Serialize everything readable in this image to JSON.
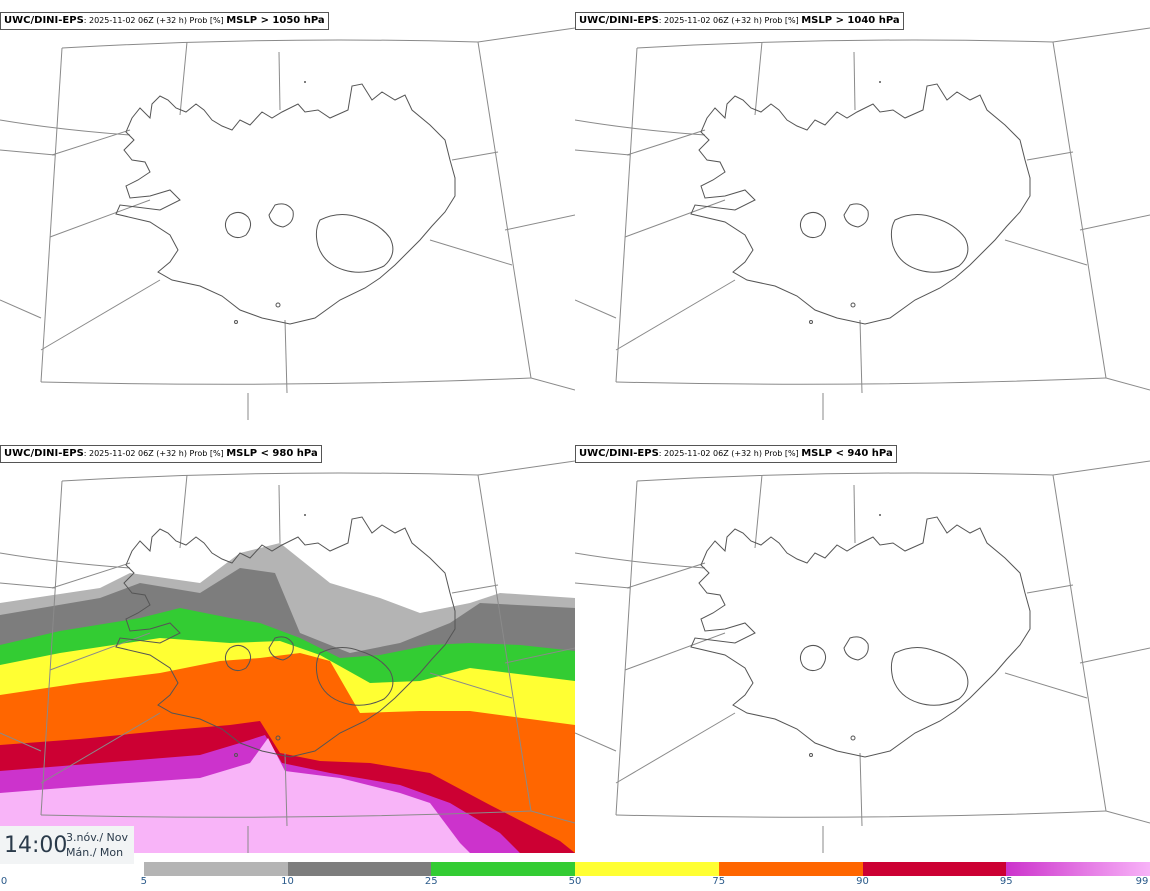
{
  "panels": [
    {
      "model": "UWC/DINI-EPS",
      "run": ": 2025-11-02 06Z (+32 h) Prob [%]",
      "threshold": "MSLP > 1050 hPa"
    },
    {
      "model": "UWC/DINI-EPS",
      "run": ": 2025-11-02 06Z (+32 h) Prob [%]",
      "threshold": "MSLP > 1040 hPa"
    },
    {
      "model": "UWC/DINI-EPS",
      "run": ": 2025-11-02 06Z (+32 h) Prob [%]",
      "threshold": "MSLP < 980 hPa"
    },
    {
      "model": "UWC/DINI-EPS",
      "run": ": 2025-11-02 06Z (+32 h) Prob [%]",
      "threshold": "MSLP < 940 hPa"
    }
  ],
  "valid_time": {
    "time": "14:00",
    "date_line1": "3.nóv./ Nov",
    "date_line2": "Mán./ Mon"
  },
  "colorbar": {
    "ticks": [
      "0",
      "5",
      "10",
      "25",
      "50",
      "75",
      "90",
      "95",
      "99"
    ],
    "colors": [
      "#ffffff",
      "#b4b4b4",
      "#7d7d7d",
      "#33cc33",
      "#ffff33",
      "#ff6600",
      "#cc0033",
      "#cc33cc",
      "#f8b4f8"
    ]
  },
  "probability_field_980": {
    "bands_north_to_south": [
      "5-10",
      "10-25",
      "25-50",
      "50-75",
      "75-90",
      "90-95",
      "95-99",
      ">99"
    ]
  }
}
